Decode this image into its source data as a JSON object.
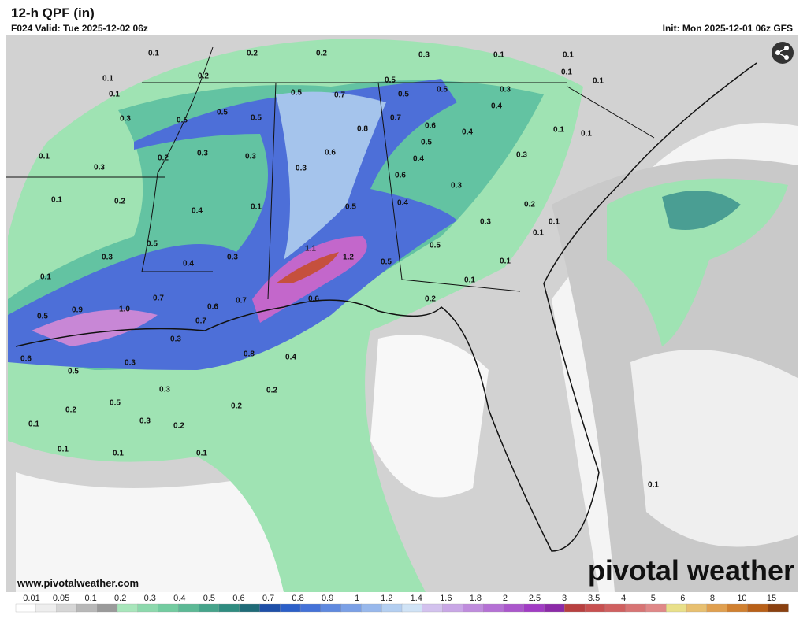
{
  "header": {
    "title": "12-h QPF (in)",
    "valid": "F024 Valid: Tue 2025-12-02 06z",
    "init": "Init: Mon 2025-12-01 06z GFS"
  },
  "map_labels": [
    "0.1",
    "0.2",
    "0.2",
    "0.3",
    "0.1",
    "0.1",
    "0.1",
    "0.2",
    "0.1",
    "0.1",
    "0.1",
    "0.5",
    "0.5",
    "0.7",
    "0.5",
    "0.5",
    "0.3",
    "0.5",
    "0.5",
    "0.5",
    "0.3",
    "0.4",
    "0.7",
    "0.8",
    "0.6",
    "0.4",
    "0.1",
    "0.1",
    "0.5",
    "0.1",
    "0.2",
    "0.3",
    "0.3",
    "0.6",
    "0.4",
    "0.3",
    "0.3",
    "0.3",
    "0.6",
    "0.3",
    "0.1",
    "0.2",
    "0.1",
    "0.4",
    "0.5",
    "0.4",
    "0.2",
    "0.1",
    "0.3",
    "0.1",
    "0.5",
    "0.5",
    "1.1",
    "1.2",
    "0.3",
    "0.3",
    "0.4",
    "0.5",
    "0.1",
    "0.1",
    "0.1",
    "0.7",
    "0.6",
    "0.7",
    "0.6",
    "0.2",
    "0.9",
    "1.0",
    "0.5",
    "0.7",
    "0.3",
    "0.8",
    "0.4",
    "0.6",
    "0.3",
    "0.5",
    "0.3",
    "0.2",
    "0.5",
    "0.2",
    "0.2",
    "0.3",
    "0.1",
    "0.2",
    "0.1",
    "0.1",
    "0.1",
    "0.1"
  ],
  "footer": {
    "site": "www.pivotalweather.com",
    "logo": "pivotal weather"
  },
  "colorbar": {
    "labels": [
      "0.01",
      "0.05",
      "0.1",
      "0.2",
      "0.3",
      "0.4",
      "0.5",
      "0.6",
      "0.7",
      "0.8",
      "0.9",
      "1",
      "1.2",
      "1.4",
      "1.6",
      "1.8",
      "2",
      "2.5",
      "3",
      "3.5",
      "4",
      "5",
      "6",
      "8",
      "10",
      "15"
    ]
  }
}
